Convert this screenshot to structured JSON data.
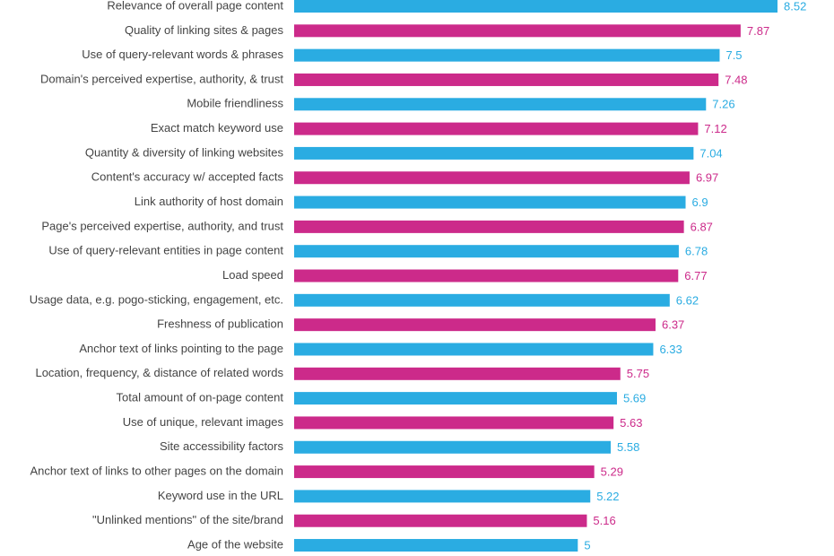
{
  "chart_data": {
    "type": "bar",
    "orientation": "horizontal",
    "title": "",
    "xlabel": "",
    "ylabel": "",
    "xlim": [
      0,
      8.52
    ],
    "grid": false,
    "legend": "none",
    "colors": [
      "#2aace2",
      "#cc2a8a"
    ],
    "categories": [
      "Relevance of overall page content",
      "Quality of linking sites & pages",
      "Use of query-relevant words & phrases",
      "Domain's perceived expertise, authority, & trust",
      "Mobile friendliness",
      "Exact match keyword use",
      "Quantity & diversity of linking websites",
      "Content's accuracy w/ accepted facts",
      "Link authority of host domain",
      "Page's perceived expertise, authority, and trust",
      "Use of query-relevant entities in page content",
      "Load speed",
      "Usage data, e.g. pogo-sticking, engagement, etc.",
      "Freshness of publication",
      "Anchor text of links pointing to the page",
      "Location, frequency, & distance of related words",
      "Total amount of on-page content",
      "Use of unique, relevant images",
      "Site accessibility factors",
      "Anchor text of links to other pages on the domain",
      "Keyword use in the URL",
      "\"Unlinked mentions\" of the site/brand",
      "Age of the website"
    ],
    "values": [
      8.52,
      7.87,
      7.5,
      7.48,
      7.26,
      7.12,
      7.04,
      6.97,
      6.9,
      6.87,
      6.78,
      6.77,
      6.62,
      6.37,
      6.33,
      5.75,
      5.69,
      5.63,
      5.58,
      5.29,
      5.22,
      5.16,
      5
    ],
    "value_labels": [
      "8.52",
      "7.87",
      "7.5",
      "7.48",
      "7.26",
      "7.12",
      "7.04",
      "6.97",
      "6.9",
      "6.87",
      "6.78",
      "6.77",
      "6.62",
      "6.37",
      "6.33",
      "5.75",
      "5.69",
      "5.63",
      "5.58",
      "5.29",
      "5.22",
      "5.16",
      "5"
    ]
  }
}
